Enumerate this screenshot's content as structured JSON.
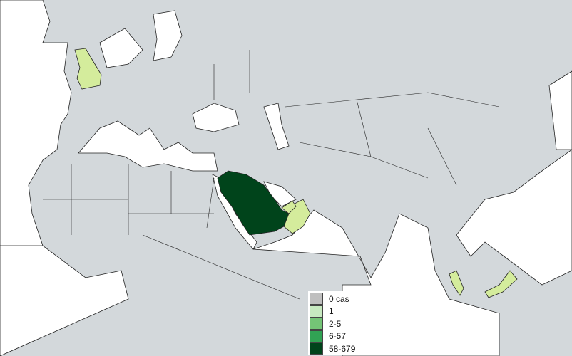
{
  "map": {
    "region": "Europe, Africa, Asia",
    "colors": {
      "land": "#d3d8db",
      "sea": "#ffffff",
      "low": "#d4ec9c"
    },
    "highlighted": [
      {
        "country": "Saudi Arabia",
        "category": "58-679",
        "color": "#00441b"
      },
      {
        "country": "United Kingdom",
        "category": "1",
        "color": "#d4ec9c"
      },
      {
        "country": "Oman",
        "category": "1",
        "color": "#d4ec9c"
      },
      {
        "country": "United Arab Emirates",
        "category": "1",
        "color": "#d4ec9c"
      },
      {
        "country": "Malaysia",
        "category": "1",
        "color": "#d4ec9c"
      }
    ]
  },
  "legend": {
    "items": [
      {
        "label": "0 cas",
        "color": "#bfbfbf"
      },
      {
        "label": "1",
        "color": "#c7e9c0"
      },
      {
        "label": "2-5",
        "color": "#74c476"
      },
      {
        "label": "6-57",
        "color": "#31a354"
      },
      {
        "label": "58-679",
        "color": "#00441b"
      }
    ]
  }
}
